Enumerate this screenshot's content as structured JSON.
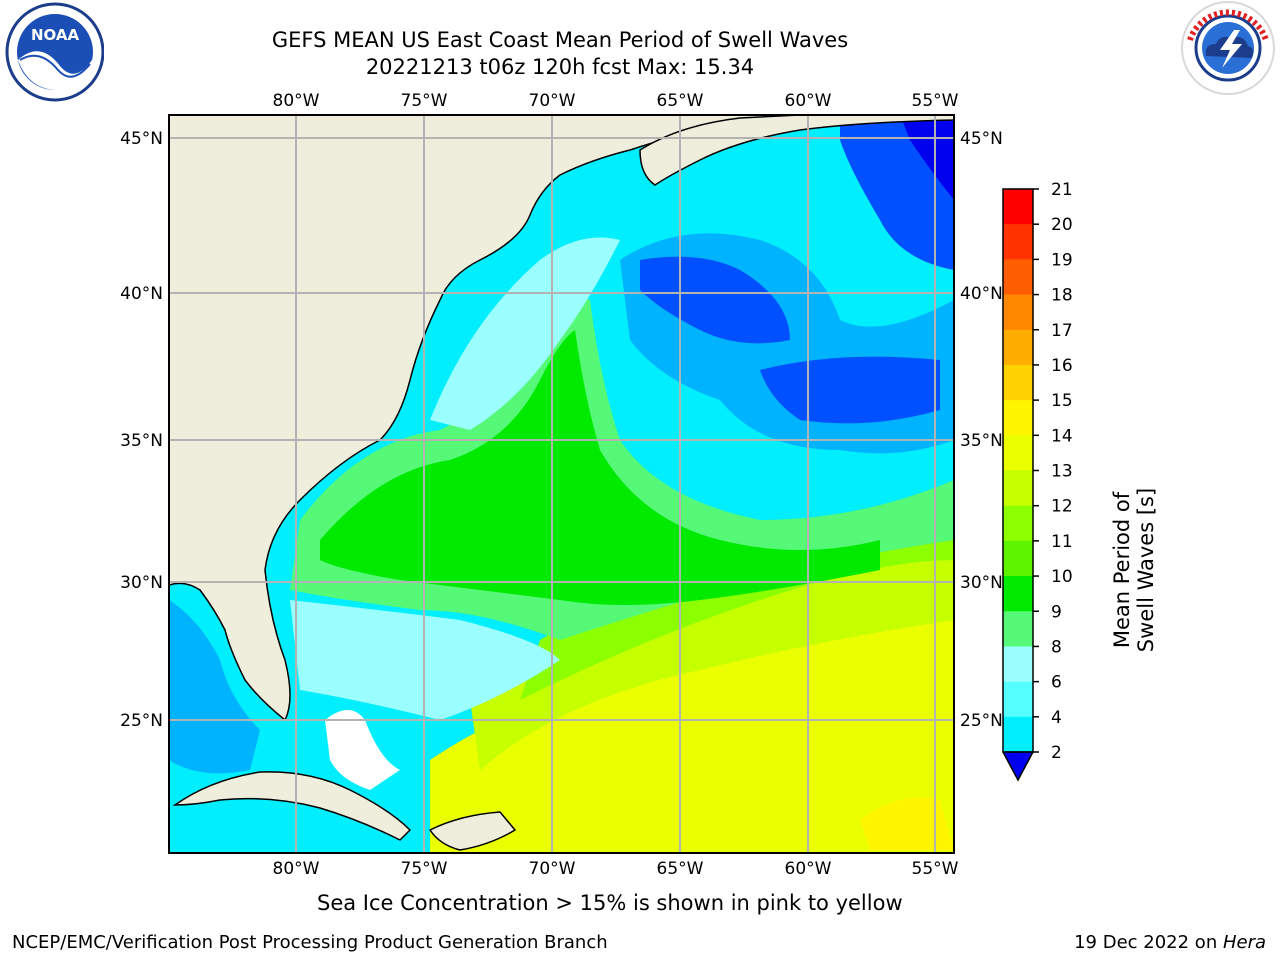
{
  "title": {
    "line1": "GEFS MEAN US East Coast Mean Period of Swell Waves",
    "line2": "20221213 t06z 120h fcst   Max: 15.34"
  },
  "logos": {
    "left": {
      "icon": "noaa-logo-icon",
      "text": "NOAA"
    },
    "right": {
      "icon": "national-weather-service-logo-icon"
    }
  },
  "map": {
    "lon_labels": [
      "80°W",
      "75°W",
      "70°W",
      "65°W",
      "60°W",
      "55°W"
    ],
    "lat_labels": [
      "45°N",
      "40°N",
      "35°N",
      "30°N",
      "25°N"
    ],
    "colors": {
      "land": "#efeedc",
      "ocean_base": "#00eefe",
      "grid": "#b3b3b3",
      "coast": "#000000"
    }
  },
  "colorbar": {
    "title": "Mean Period of Swell Waves [s]",
    "ticks": [
      "21",
      "20",
      "19",
      "18",
      "17",
      "16",
      "15",
      "14",
      "13",
      "12",
      "11",
      "10",
      "9",
      "8",
      "6",
      "4",
      "2"
    ],
    "colors": [
      "#ff0000",
      "#ff3300",
      "#ff5e00",
      "#ff8800",
      "#ffad00",
      "#ffd200",
      "#fff500",
      "#eaff00",
      "#c5ff00",
      "#8cff00",
      "#5ef400",
      "#00ea00",
      "#55f877",
      "#9cffff",
      "#55ffff",
      "#00eefe",
      "#00b3ff",
      "#0050ff",
      "#0000ee"
    ]
  },
  "footer": {
    "note": "Sea Ice Concentration > 15% is shown in pink to yellow",
    "left": "NCEP/EMC/Verification Post Processing Product Generation Branch",
    "right_prefix": "19 Dec 2022 on ",
    "right_host": "Hera"
  }
}
